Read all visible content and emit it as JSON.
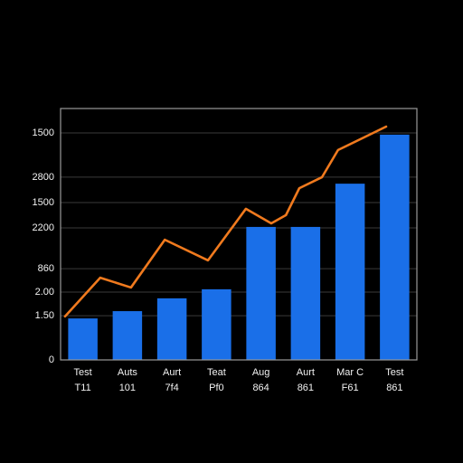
{
  "chart_data": {
    "type": "bar",
    "categories": [
      "Test",
      "Auts",
      "Aurt",
      "Teat",
      "Aug",
      "Aurt",
      "Mar C",
      "Test"
    ],
    "category_sublabels": [
      "T11",
      "101",
      "7f4",
      "Pf0",
      "864",
      "861",
      "F61",
      "861"
    ],
    "series": [
      {
        "type": "bar",
        "color": "#1a6fe8",
        "values": [
          16.5,
          19.4,
          24.5,
          28.1,
          52.9,
          52.9,
          70.1,
          89.6
        ]
      },
      {
        "type": "line",
        "color": "#f07a1e",
        "x": [
          -0.4,
          0.39,
          1.08,
          1.84,
          2.81,
          3.66,
          4.23,
          4.56,
          4.86,
          5.37,
          5.73,
          6.81
        ],
        "values": [
          17.3,
          32.7,
          28.8,
          47.8,
          39.6,
          60.1,
          54.3,
          57.6,
          68.3,
          72.7,
          83.5,
          92.8
        ]
      }
    ],
    "xlim": [
      -0.5,
      7.5
    ],
    "ylim": [
      0,
      100
    ],
    "yticks": [
      {
        "value": 90.3,
        "label": "1500"
      },
      {
        "value": 72.7,
        "label": "2800"
      },
      {
        "value": 62.6,
        "label": "1500"
      },
      {
        "value": 52.5,
        "label": "2200"
      },
      {
        "value": 36.3,
        "label": "860"
      },
      {
        "value": 27,
        "label": "2.00"
      },
      {
        "value": 17.6,
        "label": "1.50"
      },
      0
    ],
    "grid": true
  }
}
